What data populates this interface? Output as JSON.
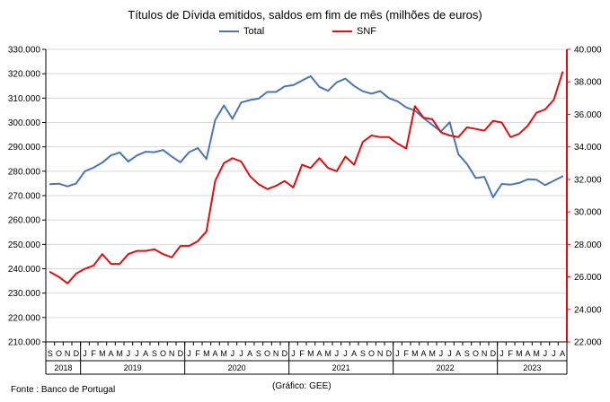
{
  "title": "Títulos de Dívida emitidos, saldos em fim de mês  (milhões de euros)",
  "source": "Fonte : Banco de Portugal",
  "credit": "(Gráfico:  GEE)",
  "colors": {
    "total": "#4a76b5",
    "snf": "#e01010",
    "axis": "#000000",
    "grid": "#d9d9d9"
  },
  "chart_data": {
    "type": "line",
    "title": "Títulos de Dívida emitidos, saldos em fim de mês  (milhões de euros)",
    "xlabel": "",
    "ylabel": "",
    "grid": true,
    "legend_position": "top",
    "x": [
      "S",
      "O",
      "N",
      "D",
      "J",
      "F",
      "M",
      "A",
      "M",
      "J",
      "J",
      "A",
      "S",
      "O",
      "N",
      "D",
      "J",
      "F",
      "M",
      "A",
      "M",
      "J",
      "J",
      "A",
      "S",
      "O",
      "N",
      "D",
      "J",
      "F",
      "M",
      "A",
      "M",
      "J",
      "J",
      "A",
      "S",
      "O",
      "N",
      "D",
      "J",
      "F",
      "M",
      "A",
      "M",
      "J",
      "J",
      "A",
      "S",
      "O",
      "N",
      "D",
      "J",
      "F",
      "M",
      "A",
      "M",
      "J",
      "J",
      "A"
    ],
    "years": [
      {
        "label": "2018",
        "months": 4
      },
      {
        "label": "2019",
        "months": 12
      },
      {
        "label": "2020",
        "months": 12
      },
      {
        "label": "2021",
        "months": 12
      },
      {
        "label": "2022",
        "months": 12
      },
      {
        "label": "2023",
        "months": 8
      }
    ],
    "y_left": {
      "min": 210000,
      "max": 330000,
      "step": 10000,
      "tick_labels": [
        "210.000",
        "220.000",
        "230.000",
        "240.000",
        "250.000",
        "260.000",
        "270.000",
        "280.000",
        "290.000",
        "300.000",
        "310.000",
        "320.000",
        "330.000"
      ]
    },
    "y_right": {
      "min": 22000,
      "max": 40000,
      "step": 2000,
      "tick_labels": [
        "22.000",
        "24.000",
        "26.000",
        "28.000",
        "30.000",
        "32.000",
        "34.000",
        "36.000",
        "38.000",
        "40.000"
      ]
    },
    "series": [
      {
        "name": "Total",
        "axis": "left",
        "values": [
          274700,
          274900,
          273800,
          275000,
          280000,
          281500,
          283500,
          286500,
          287700,
          284000,
          286500,
          288000,
          287800,
          288700,
          286000,
          283700,
          287800,
          289500,
          285000,
          301000,
          307000,
          301500,
          308200,
          309200,
          309800,
          312500,
          312500,
          314800,
          315300,
          317200,
          319000,
          314600,
          313000,
          316500,
          318000,
          315000,
          312800,
          311800,
          312900,
          310000,
          308700,
          306200,
          304900,
          301800,
          299000,
          296300,
          300100,
          287000,
          283000,
          277200,
          277700,
          269300,
          274800,
          274500,
          275200,
          276700,
          276500,
          274300,
          276100,
          277900
        ]
      },
      {
        "name": "SNF",
        "axis": "right",
        "values": [
          26300,
          26000,
          25600,
          26200,
          26500,
          26700,
          27400,
          26800,
          26800,
          27400,
          27600,
          27600,
          27700,
          27400,
          27200,
          27900,
          27900,
          28200,
          28800,
          31900,
          33000,
          33300,
          33100,
          32200,
          31700,
          31400,
          31600,
          31900,
          31500,
          32900,
          32700,
          33300,
          32700,
          32500,
          33400,
          32900,
          34300,
          34700,
          34600,
          34600,
          34200,
          33900,
          36500,
          35800,
          35700,
          34900,
          34700,
          34600,
          35200,
          35100,
          35000,
          35600,
          35500,
          34600,
          34800,
          35300,
          36100,
          36300,
          36900,
          38600
        ]
      }
    ]
  }
}
